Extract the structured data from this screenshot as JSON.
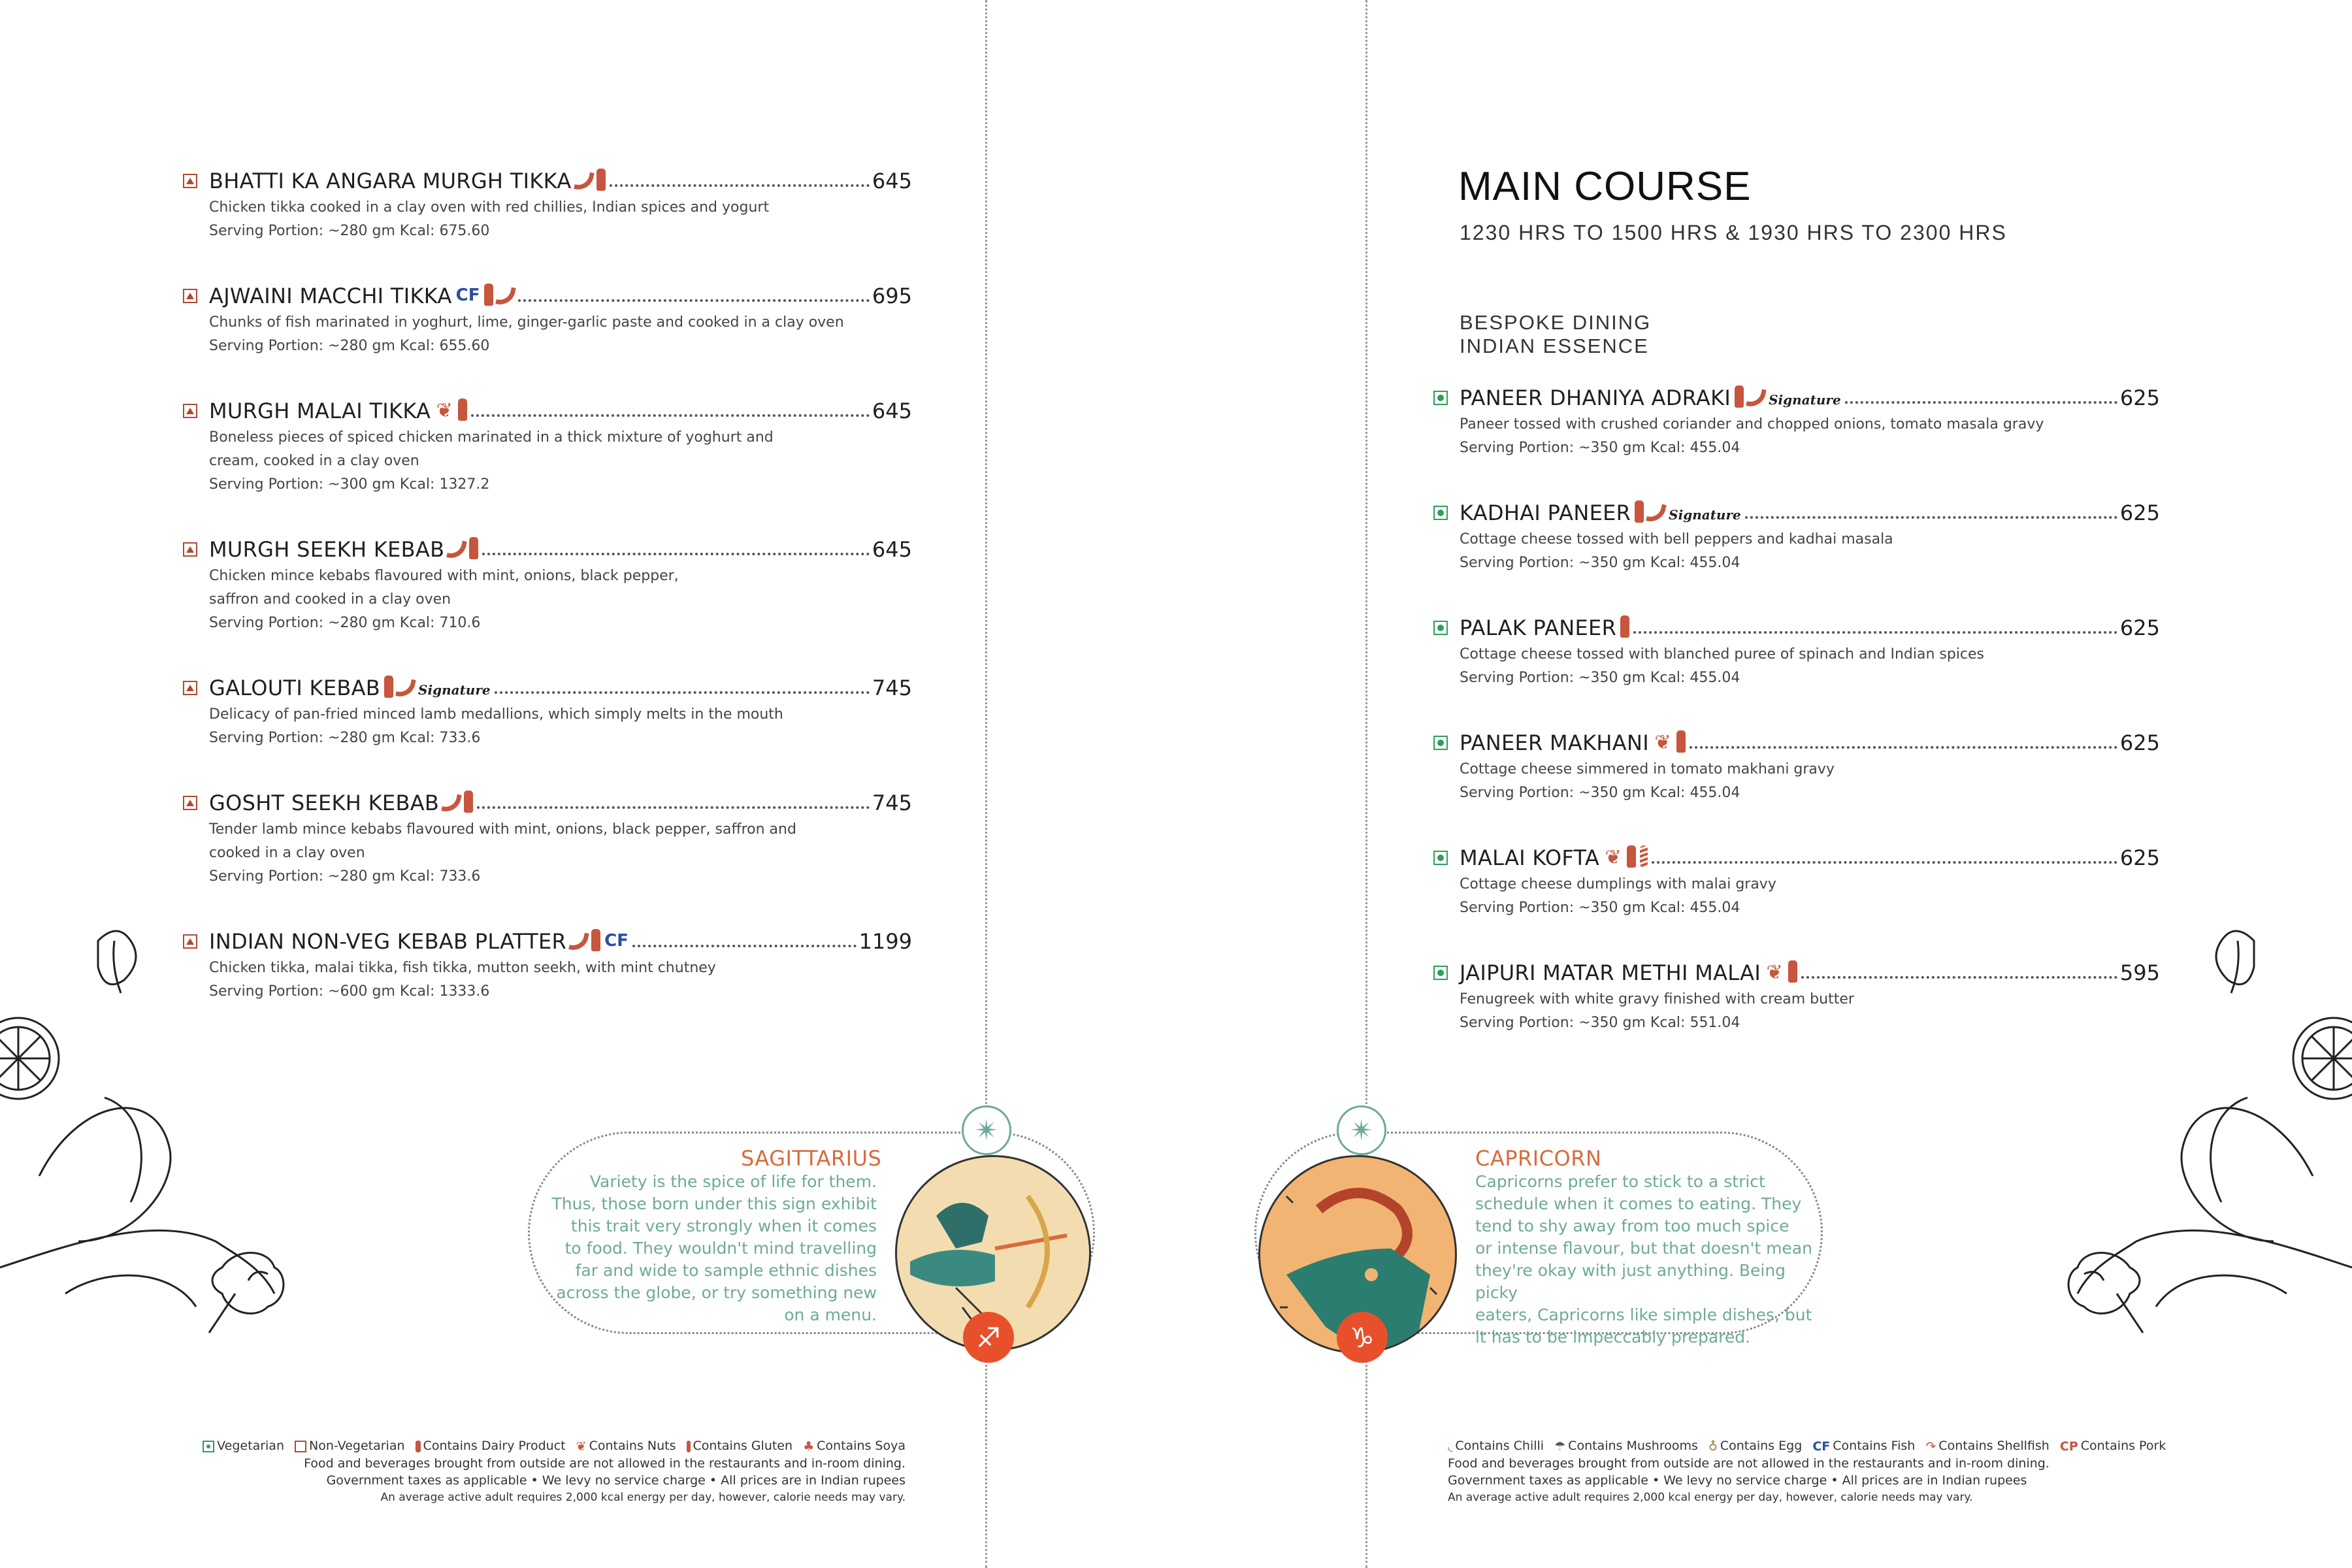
{
  "left_menu": {
    "items": [
      {
        "name": "BHATTI KA ANGARA MURGH TIKKA",
        "price": "645",
        "icons": [
          "chilli",
          "dairy"
        ],
        "desc": [
          "Chicken tikka cooked in a clay oven with red chillies, Indian spices and yogurt",
          "Serving Portion: ~280 gm Kcal: 675.60"
        ]
      },
      {
        "name": "AJWAINI MACCHI TIKKA",
        "price": "695",
        "icons": [
          "cf",
          "dairy",
          "chilli"
        ],
        "desc": [
          "Chunks of fish marinated in yoghurt, lime, ginger-garlic paste and cooked in a clay oven",
          "Serving Portion: ~280 gm Kcal: 655.60"
        ]
      },
      {
        "name": "MURGH MALAI TIKKA",
        "price": "645",
        "icons": [
          "nuts",
          "dairy"
        ],
        "desc": [
          "Boneless pieces of spiced chicken marinated in a thick mixture of yoghurt and",
          "cream, cooked in a clay oven",
          "Serving Portion: ~300 gm Kcal: 1327.2"
        ]
      },
      {
        "name": "MURGH SEEKH KEBAB",
        "price": "645",
        "icons": [
          "chilli",
          "dairy"
        ],
        "desc": [
          "Chicken mince kebabs flavoured with mint, onions, black pepper,",
          "saffron and cooked in a clay oven",
          "Serving Portion: ~280 gm Kcal: 710.6"
        ]
      },
      {
        "name": "GALOUTI KEBAB",
        "price": "745",
        "icons": [
          "dairy",
          "chilli"
        ],
        "signature": "Signature",
        "desc": [
          "Delicacy of pan-fried minced lamb medallions, which simply melts in the mouth",
          "Serving Portion: ~280 gm Kcal: 733.6"
        ]
      },
      {
        "name": "GOSHT SEEKH KEBAB",
        "price": "745",
        "icons": [
          "chilli",
          "dairy"
        ],
        "desc": [
          "Tender lamb mince kebabs flavoured with mint, onions, black pepper, saffron and",
          "cooked in a clay oven",
          "Serving Portion: ~280 gm Kcal: 733.6"
        ]
      },
      {
        "name": "INDIAN NON-VEG KEBAB PLATTER",
        "price": "1199",
        "icons": [
          "chilli",
          "dairy",
          "cf"
        ],
        "desc": [
          "Chicken tikka, malai tikka, fish tikka, mutton seekh, with mint chutney",
          "Serving Portion: ~600 gm Kcal: 1333.6"
        ]
      }
    ]
  },
  "right_menu": {
    "title": "MAIN COURSE",
    "hours": "1230 HRS TO 1500 HRS & 1930 HRS TO 2300 HRS",
    "section_line1": "BESPOKE DINING",
    "section_line2": "INDIAN ESSENCE",
    "items": [
      {
        "name": "PANEER DHANIYA ADRAKI",
        "price": "625",
        "icons": [
          "dairy",
          "chilli"
        ],
        "signature": "Signature",
        "desc": [
          "Paneer tossed with crushed coriander and chopped onions, tomato masala gravy",
          "Serving Portion: ~350 gm Kcal: 455.04"
        ]
      },
      {
        "name": "KADHAI PANEER",
        "price": "625",
        "icons": [
          "dairy",
          "chilli"
        ],
        "signature": "Signature",
        "desc": [
          "Cottage cheese tossed with bell peppers and kadhai masala",
          "Serving Portion: ~350 gm Kcal: 455.04"
        ]
      },
      {
        "name": "PALAK PANEER",
        "price": "625",
        "icons": [
          "dairy"
        ],
        "desc": [
          "Cottage cheese tossed with blanched puree of spinach and Indian spices",
          "Serving Portion: ~350 gm Kcal: 455.04"
        ]
      },
      {
        "name": "PANEER MAKHANI",
        "price": "625",
        "icons": [
          "nuts",
          "dairy"
        ],
        "desc": [
          "Cottage cheese simmered in tomato makhani gravy",
          "Serving Portion: ~350 gm Kcal: 455.04"
        ]
      },
      {
        "name": "MALAI KOFTA",
        "price": "625",
        "icons": [
          "nuts",
          "dairy",
          "gluten"
        ],
        "desc": [
          "Cottage cheese dumplings with malai gravy",
          "Serving Portion: ~350 gm Kcal: 455.04"
        ]
      },
      {
        "name": "JAIPURI MATAR METHI MALAI",
        "price": "595",
        "icons": [
          "nuts",
          "dairy"
        ],
        "desc": [
          "Fenugreek with white gravy finished with cream butter",
          "Serving Portion: ~350 gm Kcal: 551.04"
        ]
      }
    ]
  },
  "sagittarius": {
    "title": "SAGITTARIUS",
    "lines": [
      "Variety is the spice of life for them.",
      "Thus, those born under this sign exhibit",
      "this trait very strongly when it comes",
      "to food. They wouldn't mind travelling",
      "far and wide to sample ethnic dishes",
      "across the globe, or try something new",
      "on a menu."
    ],
    "glyph": "♐"
  },
  "capricorn": {
    "title": "CAPRICORN",
    "lines": [
      "Capricorns prefer to stick to a strict",
      "schedule when it comes to eating. They",
      "tend to shy away from too much spice",
      "or intense flavour, but that doesn't mean",
      "they're okay with just anything. Being picky",
      "eaters, Capricorns like simple dishes, but",
      "it has to be impeccably prepared."
    ],
    "glyph": "♑"
  },
  "legend_left": {
    "vegetarian": "Vegetarian",
    "non_veg": "Non-Vegetarian",
    "dairy": "Contains Dairy Product",
    "nuts": "Contains Nuts",
    "gluten": "Contains Gluten",
    "soya": "Contains Soya",
    "line2": "Food and beverages brought from outside are not allowed in the restaurants and in-room dining.",
    "line3": "Government taxes as applicable • We levy no service charge • All prices are in Indian rupees",
    "line4": "An average active adult requires 2,000 kcal energy per day, however, calorie needs may vary."
  },
  "legend_right": {
    "chilli": "Contains Chilli",
    "mushrooms": "Contains Mushrooms",
    "egg": "Contains Egg",
    "fish_code": "CF",
    "fish": "Contains Fish",
    "shellfish": "Contains Shellfish",
    "pork_code": "CP",
    "pork": "Contains Pork",
    "line2": "Food and beverages brought from outside are not allowed in the restaurants and in-room dining.",
    "line3": "Government taxes as applicable • We levy no service charge • All prices are in Indian rupees",
    "line4": "An average active adult requires 2,000 kcal energy per day, however, calorie needs may vary."
  },
  "colors": {
    "accent": "#d86b3c",
    "teal": "#6fa99b",
    "veg": "#2e9e5b",
    "nonveg": "#b04a32",
    "fish": "#2b4fa0"
  }
}
